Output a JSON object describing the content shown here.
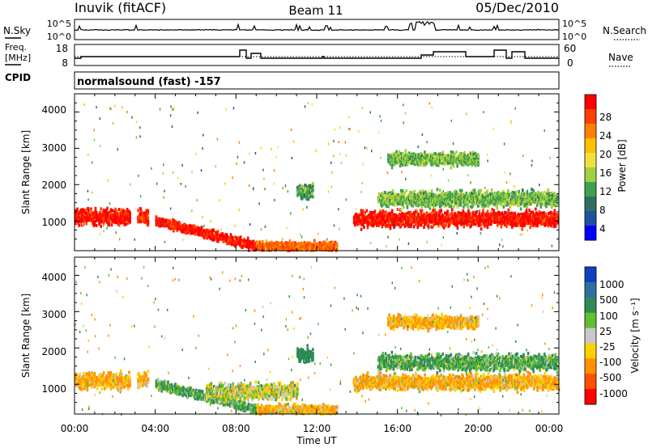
{
  "header": {
    "station": "Inuvik (fitACF)",
    "beam": "Beam 11",
    "date": "05/Dec/2010"
  },
  "noise_panel": {
    "left_label": "N.Sky",
    "right_label": "N.Search",
    "left_ticks": [
      "10^5",
      "10^0"
    ],
    "right_ticks": [
      "10^5",
      "10^0"
    ]
  },
  "freq_panel": {
    "left_label_1": "Freq.",
    "left_label_2": "[MHz]",
    "right_label": "Nave",
    "cpid_label": "CPID",
    "left_ticks": [
      "18",
      "8"
    ],
    "right_ticks": [
      "60",
      "0"
    ]
  },
  "cpid_panel": {
    "text": "normalsound (fast) -157"
  },
  "axes": {
    "ylabel": "Slant Range [km]",
    "xlabel": "Time UT",
    "yticks": [
      "4000",
      "3000",
      "2000",
      "1000"
    ],
    "xticks": [
      "00:00",
      "04:00",
      "08:00",
      "12:00",
      "16:00",
      "20:00",
      "00:00"
    ]
  },
  "power_colorbar": {
    "title": "Power [dB]",
    "labels": [
      "28",
      "24",
      "20",
      "16",
      "12",
      "8",
      "4"
    ],
    "colors": [
      "#ff0000",
      "#ff4000",
      "#ff8000",
      "#ffc000",
      "#f0e040",
      "#a0d040",
      "#40a050",
      "#307060",
      "#2050a0",
      "#0000ff"
    ]
  },
  "velocity_colorbar": {
    "title": "Velocity [m s⁻¹]",
    "labels": [
      "1000",
      "500",
      "100",
      "25",
      "-25",
      "-100",
      "-500",
      "-1000"
    ],
    "colors": [
      "#1040c0",
      "#3070a0",
      "#2e8b57",
      "#60c030",
      "#c8c8c8",
      "#ffd000",
      "#ff9000",
      "#ff5000",
      "#ff0000"
    ]
  },
  "chart_data": [
    {
      "type": "heatmap",
      "title": "Power",
      "xlabel": "Time UT",
      "ylabel": "Slant Range [km]",
      "xlim": [
        0,
        24
      ],
      "ylim": [
        180,
        4500
      ],
      "colorbar_range": [
        0,
        30
      ],
      "approx_echo_regions": [
        {
          "t_start": 0.0,
          "t_end": 2.7,
          "range_center": 1100,
          "power": 28
        },
        {
          "t_start": 3.1,
          "t_end": 3.6,
          "range_center": 1100,
          "power": 26
        },
        {
          "t_start": 4.0,
          "t_end": 9.0,
          "range_center": 550,
          "power": 28
        },
        {
          "t_start": 9.0,
          "t_end": 13.0,
          "range_center": 300,
          "power": 24
        },
        {
          "t_start": 11.0,
          "t_end": 11.8,
          "range_center": 1800,
          "power": 10
        },
        {
          "t_start": 13.8,
          "t_end": 23.9,
          "range_center": 1050,
          "power": 28
        },
        {
          "t_start": 15.0,
          "t_end": 23.9,
          "range_center": 1600,
          "power": 12
        },
        {
          "t_start": 15.5,
          "t_end": 20.0,
          "range_center": 2700,
          "power": 12
        }
      ]
    },
    {
      "type": "heatmap",
      "title": "Velocity",
      "xlabel": "Time UT",
      "ylabel": "Slant Range [km]",
      "xlim": [
        0,
        24
      ],
      "ylim": [
        180,
        4500
      ],
      "colorbar_range": [
        -1000,
        1000
      ],
      "approx_echo_regions": [
        {
          "t_start": 0.0,
          "t_end": 2.7,
          "range_center": 1100,
          "velocity": -100
        },
        {
          "t_start": 3.1,
          "t_end": 3.6,
          "range_center": 1100,
          "velocity": -100
        },
        {
          "t_start": 4.0,
          "t_end": 9.0,
          "range_center": 550,
          "velocity": 100
        },
        {
          "t_start": 6.5,
          "t_end": 11.0,
          "range_center": 800,
          "velocity": 0
        },
        {
          "t_start": 9.0,
          "t_end": 13.0,
          "range_center": 300,
          "velocity": -100
        },
        {
          "t_start": 11.0,
          "t_end": 11.8,
          "range_center": 1800,
          "velocity": 300
        },
        {
          "t_start": 13.8,
          "t_end": 23.9,
          "range_center": 1050,
          "velocity": -100
        },
        {
          "t_start": 15.0,
          "t_end": 23.9,
          "range_center": 1600,
          "velocity": 100
        },
        {
          "t_start": 15.5,
          "t_end": 20.0,
          "range_center": 2700,
          "velocity": -100
        }
      ]
    }
  ]
}
